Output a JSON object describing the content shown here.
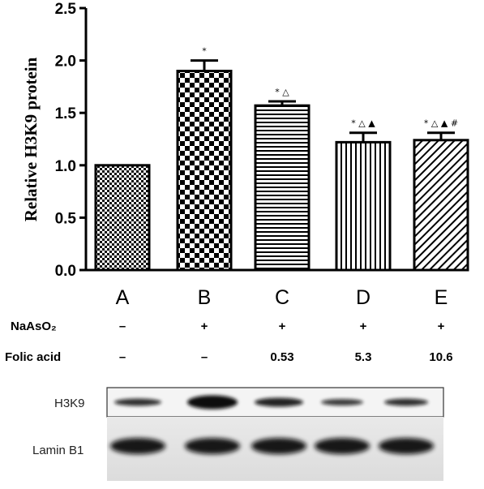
{
  "chart_data": {
    "type": "bar",
    "categories": [
      "A",
      "B",
      "C",
      "D",
      "E"
    ],
    "values": [
      1.0,
      1.9,
      1.57,
      1.22,
      1.24
    ],
    "errors": [
      0,
      0.1,
      0.04,
      0.09,
      0.07
    ],
    "significance": [
      "",
      "*",
      "* △",
      "* △ ▲",
      "* △ ▲ #"
    ],
    "patterns": [
      "fine-checker",
      "coarse-checker",
      "horizontal-lines",
      "vertical-lines",
      "diagonal-lines"
    ],
    "ylabel": "Relative H3K9 protein",
    "ylim": [
      0,
      2.5
    ],
    "yticks": [
      "0.0",
      "0.5",
      "1.0",
      "1.5",
      "2.0",
      "2.5"
    ],
    "grid": false,
    "treatments": [
      {
        "label": "NaAsO₂",
        "values": [
          "–",
          "+",
          "+",
          "+",
          "+"
        ]
      },
      {
        "label": "Folic acid",
        "values": [
          "–",
          "–",
          "0.53",
          "5.3",
          "10.6"
        ]
      }
    ],
    "blot_rows": [
      "H3K9",
      "Lamin B1"
    ]
  }
}
